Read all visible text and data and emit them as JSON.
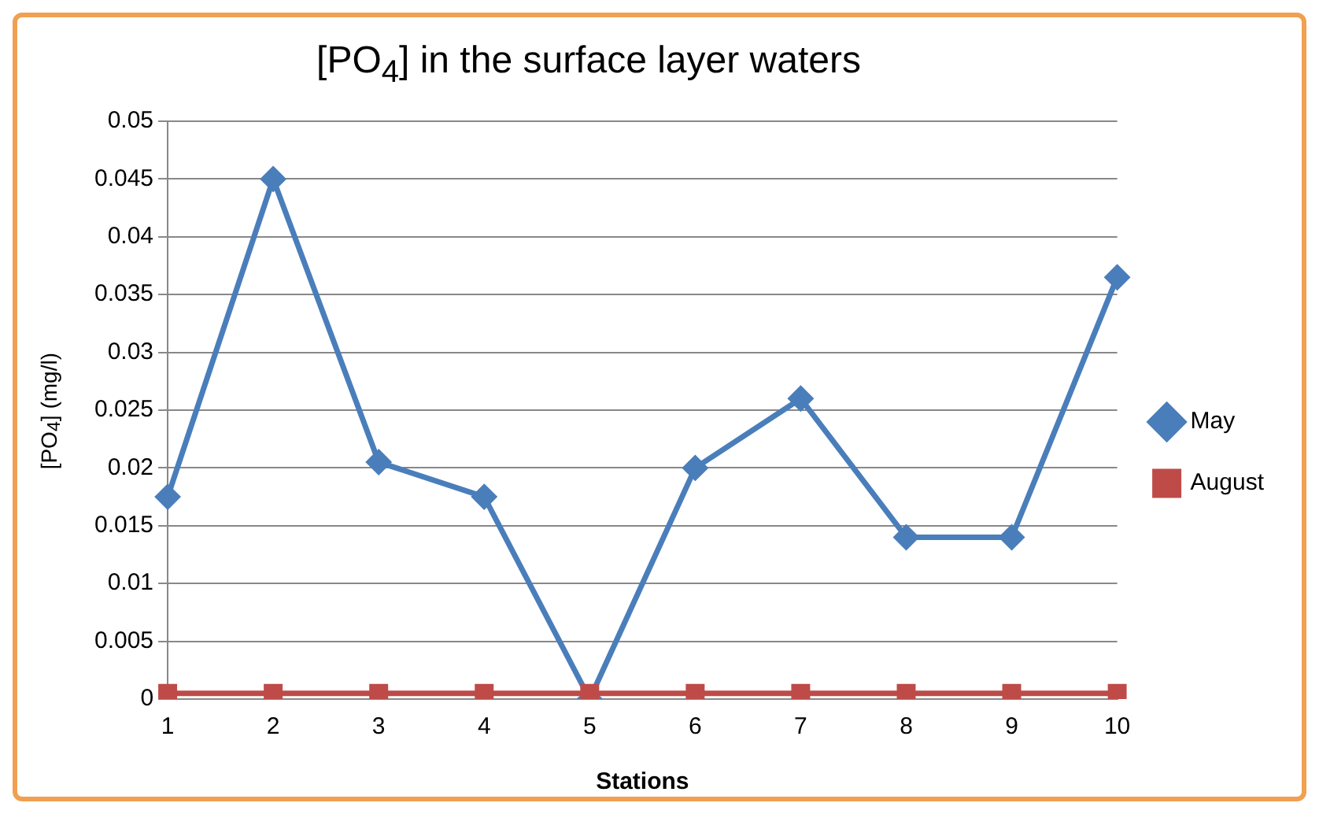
{
  "chart_data": {
    "type": "line",
    "title": "[PO$_{4}$] in the surface layer waters",
    "xlabel": "Stations",
    "ylabel": "[PO$_{4}$] (mg/l)",
    "categories": [
      "1",
      "2",
      "3",
      "4",
      "5",
      "6",
      "7",
      "8",
      "9",
      "10"
    ],
    "series": [
      {
        "name": "May",
        "color": "#4a7ebb",
        "marker": "diamond",
        "values": [
          0.0175,
          0.045,
          0.0205,
          0.0175,
          0,
          0.02,
          0.026,
          0.014,
          0.014,
          0.0365
        ]
      },
      {
        "name": "August",
        "color": "#be4b48",
        "marker": "square",
        "values": [
          0.0005,
          0.0005,
          0.0005,
          0.0005,
          0.0005,
          0.0005,
          0.0005,
          0.0005,
          0.0005,
          0.0005
        ]
      }
    ],
    "ylim": [
      0,
      0.05
    ],
    "yticks": [
      0,
      0.005,
      0.01,
      0.015,
      0.02,
      0.025,
      0.03,
      0.035,
      0.04,
      0.045,
      0.05
    ],
    "grid": "y",
    "legend": "right",
    "line_style": "solid"
  }
}
